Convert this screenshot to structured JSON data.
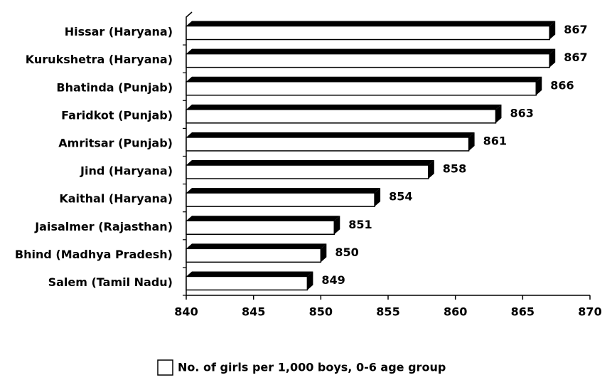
{
  "chart_data": {
    "type": "bar",
    "orientation": "horizontal",
    "categories": [
      "Hissar (Haryana)",
      "Kurukshetra (Haryana)",
      "Bhatinda (Punjab)",
      "Faridkot (Punjab)",
      "Amritsar (Punjab)",
      "Jind (Haryana)",
      "Kaithal (Haryana)",
      "Jaisalmer (Rajasthan)",
      "Bhind (Madhya Pradesh)",
      "Salem (Tamil Nadu)"
    ],
    "series": [
      {
        "name": "No. of girls per 1,000 boys, 0-6 age group",
        "color": "#ffffff",
        "values": [
          867,
          867,
          866,
          863,
          861,
          858,
          854,
          851,
          850,
          849
        ]
      }
    ],
    "xlim": [
      840,
      870
    ],
    "xticks": [
      840,
      845,
      850,
      855,
      860,
      865,
      870
    ],
    "legend": "bottom"
  }
}
